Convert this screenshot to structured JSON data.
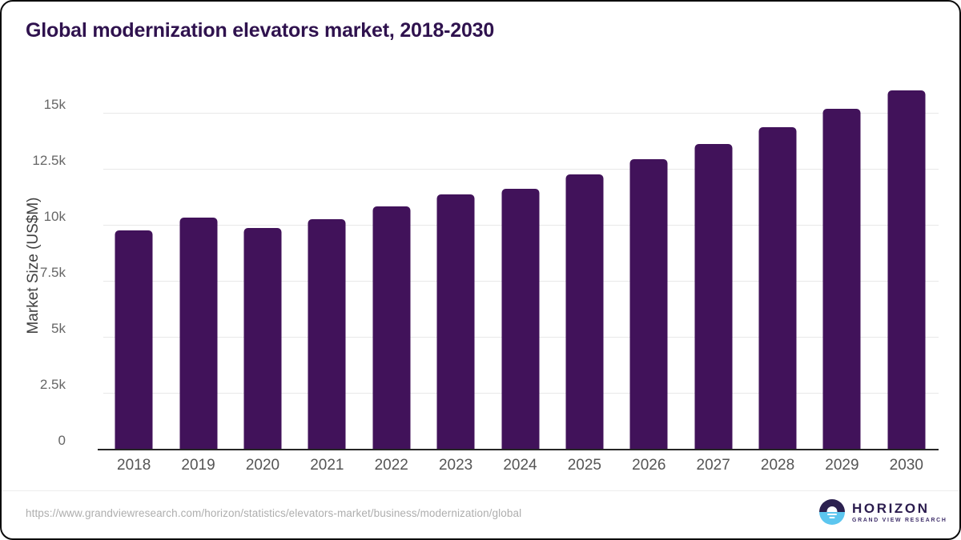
{
  "chart_data": {
    "type": "bar",
    "title": "Global modernization elevators market, 2018-2030",
    "y_axis_title": "Market Size (US$M)",
    "unit": "US$M",
    "categories": [
      "2018",
      "2019",
      "2020",
      "2021",
      "2022",
      "2023",
      "2024",
      "2025",
      "2026",
      "2027",
      "2028",
      "2029",
      "2030"
    ],
    "values": [
      9800,
      10350,
      9900,
      10300,
      10850,
      11400,
      11650,
      12300,
      12950,
      13650,
      14400,
      15200,
      16050
    ],
    "y_ticks": [
      {
        "value": 0,
        "label": "0"
      },
      {
        "value": 2500,
        "label": "2.5k"
      },
      {
        "value": 5000,
        "label": "5k"
      },
      {
        "value": 7500,
        "label": "7.5k"
      },
      {
        "value": 10000,
        "label": "10k"
      },
      {
        "value": 12500,
        "label": "12.5k"
      },
      {
        "value": 15000,
        "label": "15k"
      }
    ],
    "ylim": [
      0,
      16430
    ],
    "grid": true,
    "legend": false,
    "bar_color": "#41125a",
    "title_color": "#2f124e",
    "axis_label_color": "#666666",
    "gridline_color": "#e8e8e8"
  },
  "footer": {
    "source_url": "https://www.grandviewresearch.com/horizon/statistics/elevators-market/business/modernization/global",
    "logo": {
      "brand": "HORIZON",
      "subtitle": "GRAND VIEW RESEARCH",
      "dark_color": "#2c2150",
      "light_color": "#5cc6ef"
    }
  }
}
